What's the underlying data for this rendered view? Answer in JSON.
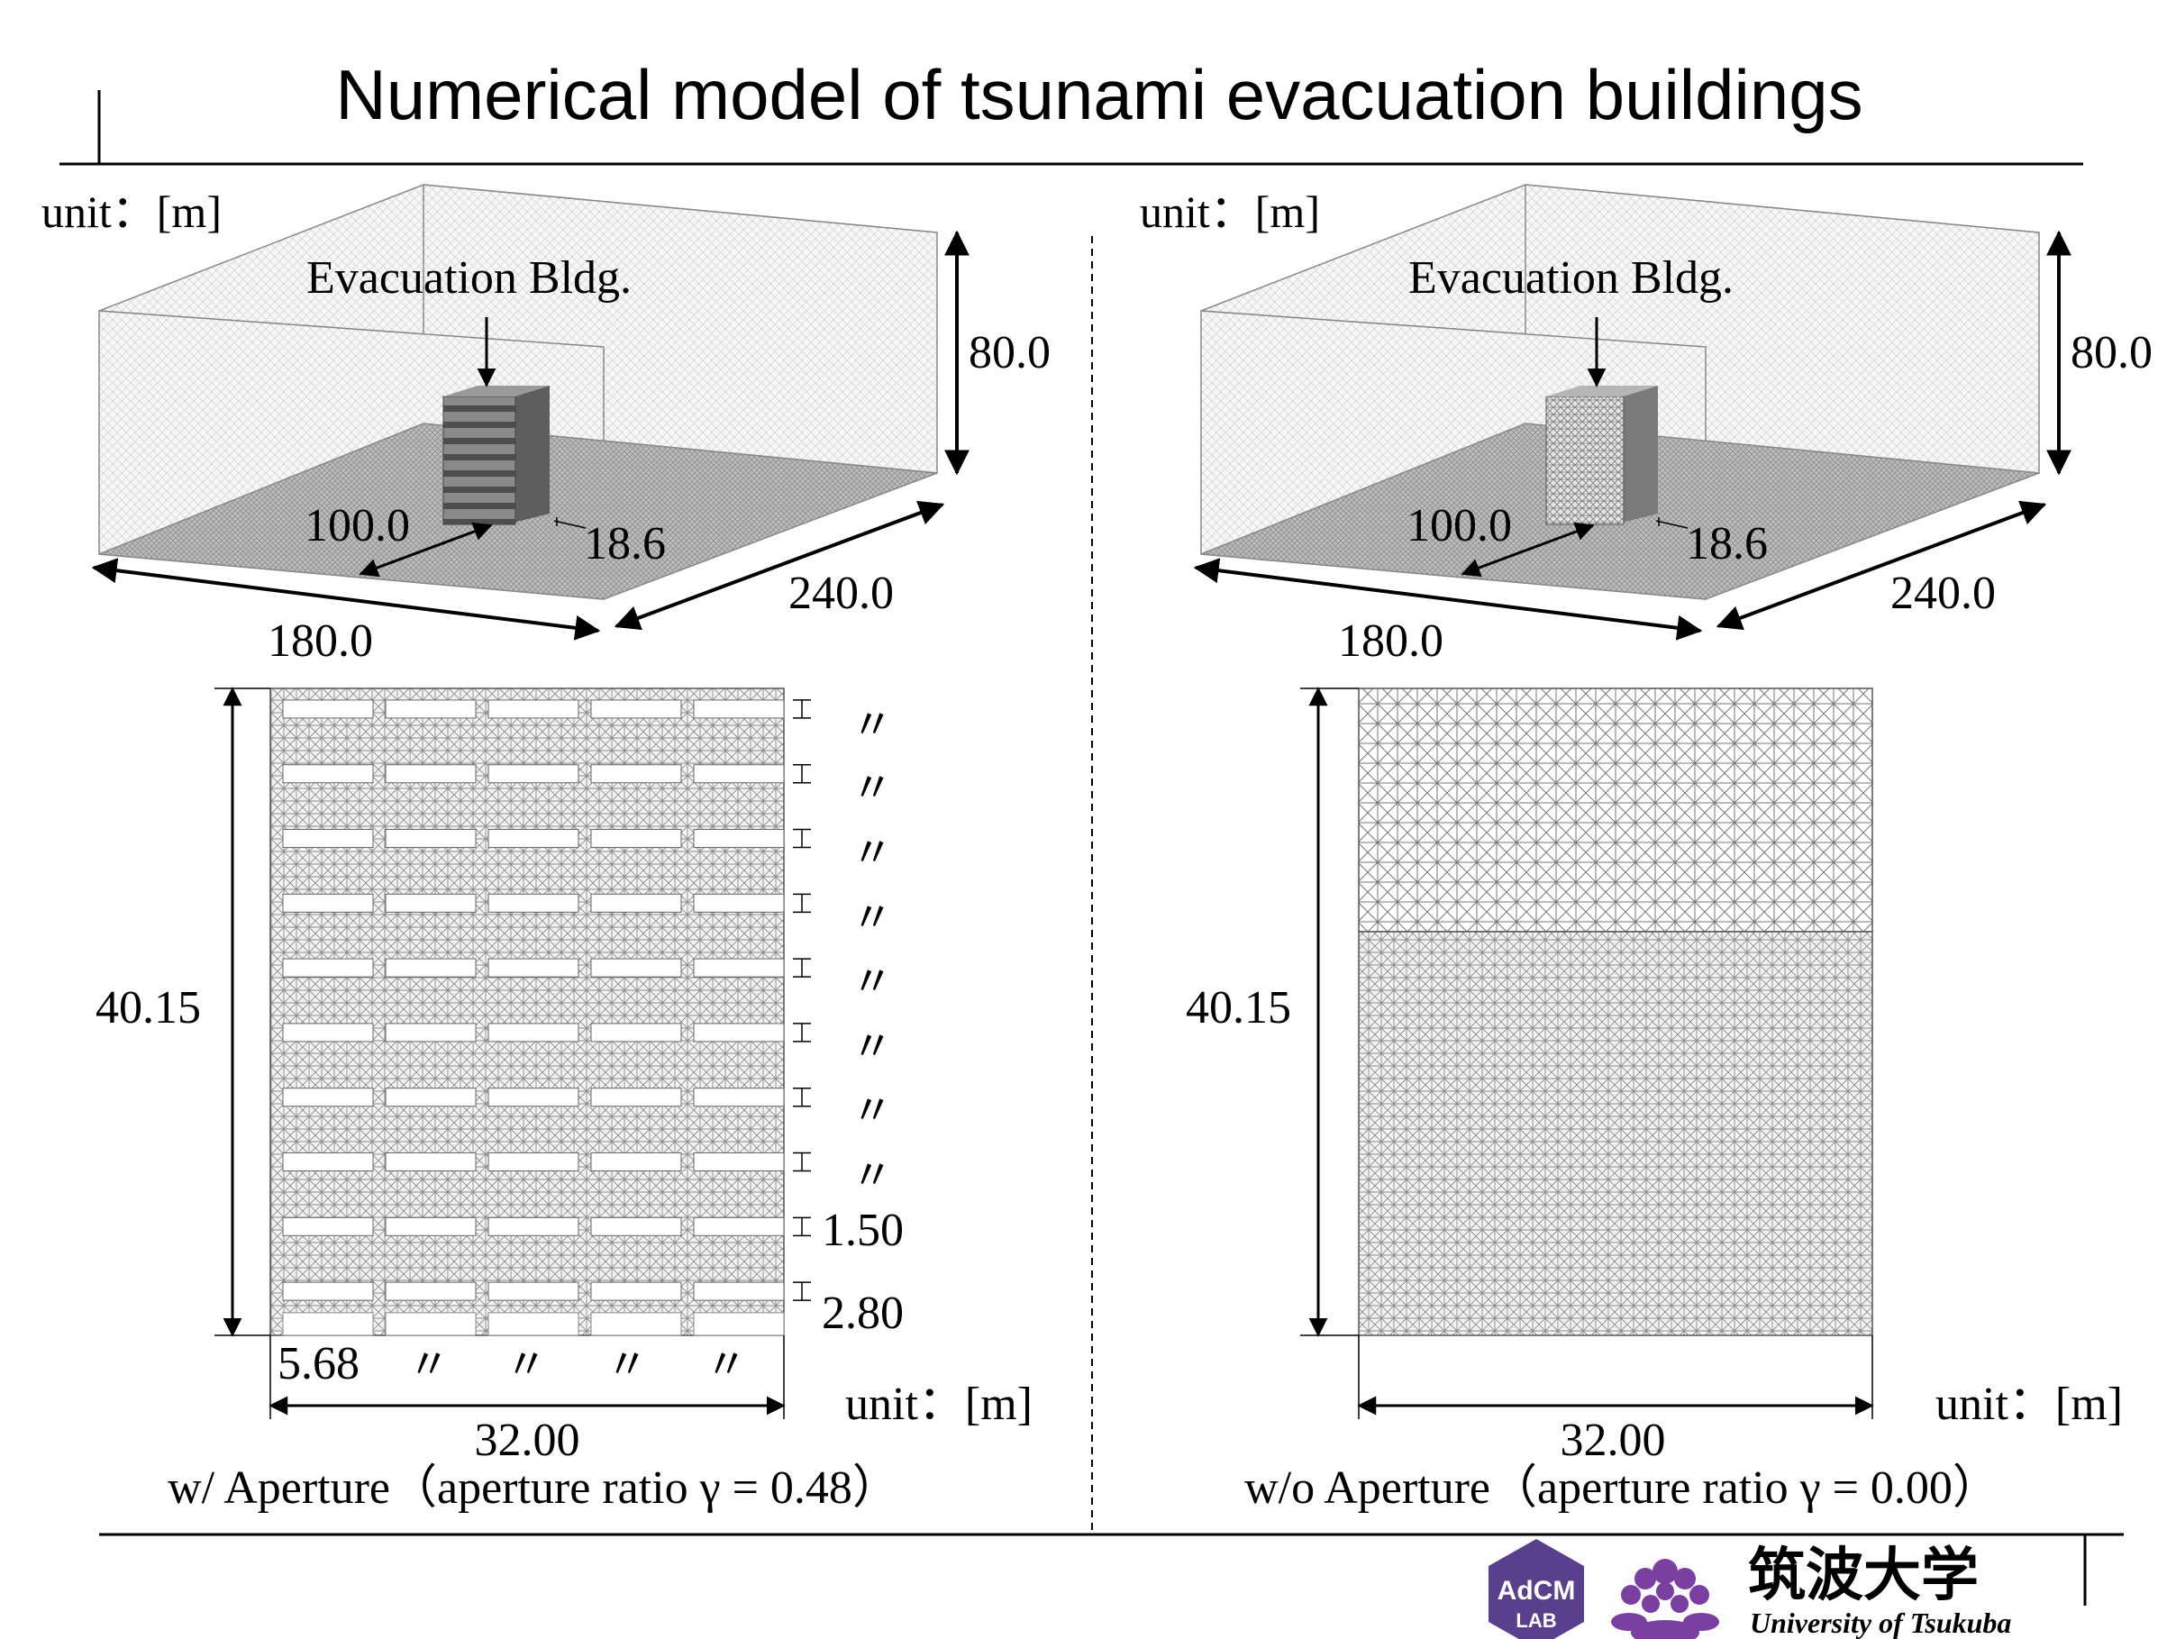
{
  "title": "Numerical model of tsunami evacuation buildings",
  "left": {
    "unit_top": "unit：[m]",
    "bldg_label": "Evacuation Bldg.",
    "dims3d": {
      "height": "80.0",
      "depth": "240.0",
      "width": "180.0",
      "offset": "100.0",
      "bldg_depth": "18.6"
    },
    "elevation": {
      "height": "40.15",
      "floor_height": "2.80",
      "slab": "1.50",
      "ditto": "〃",
      "bay": "5.68",
      "width": "32.00",
      "unit": "unit：[m]"
    },
    "caption": "w/ Aperture（aperture ratio γ = 0.48）"
  },
  "right": {
    "unit_top": "unit：[m]",
    "bldg_label": "Evacuation Bldg.",
    "dims3d": {
      "height": "80.0",
      "depth": "240.0",
      "width": "180.0",
      "offset": "100.0",
      "bldg_depth": "18.6"
    },
    "elevation": {
      "height": "40.15",
      "width": "32.00",
      "unit": "unit：[m]"
    },
    "caption": "w/o Aperture（aperture ratio γ = 0.00）"
  },
  "logos": {
    "adcm_line1": "AdCM",
    "adcm_line2": "LAB",
    "univ_jp": "筑波大学",
    "univ_en": "University of Tsukuba"
  },
  "colors": {
    "adcm": "#5a3f8f",
    "crest": "#7a3fa0",
    "mesh_dark": "#6b6b6b",
    "mesh_light": "#c8c8c8"
  }
}
